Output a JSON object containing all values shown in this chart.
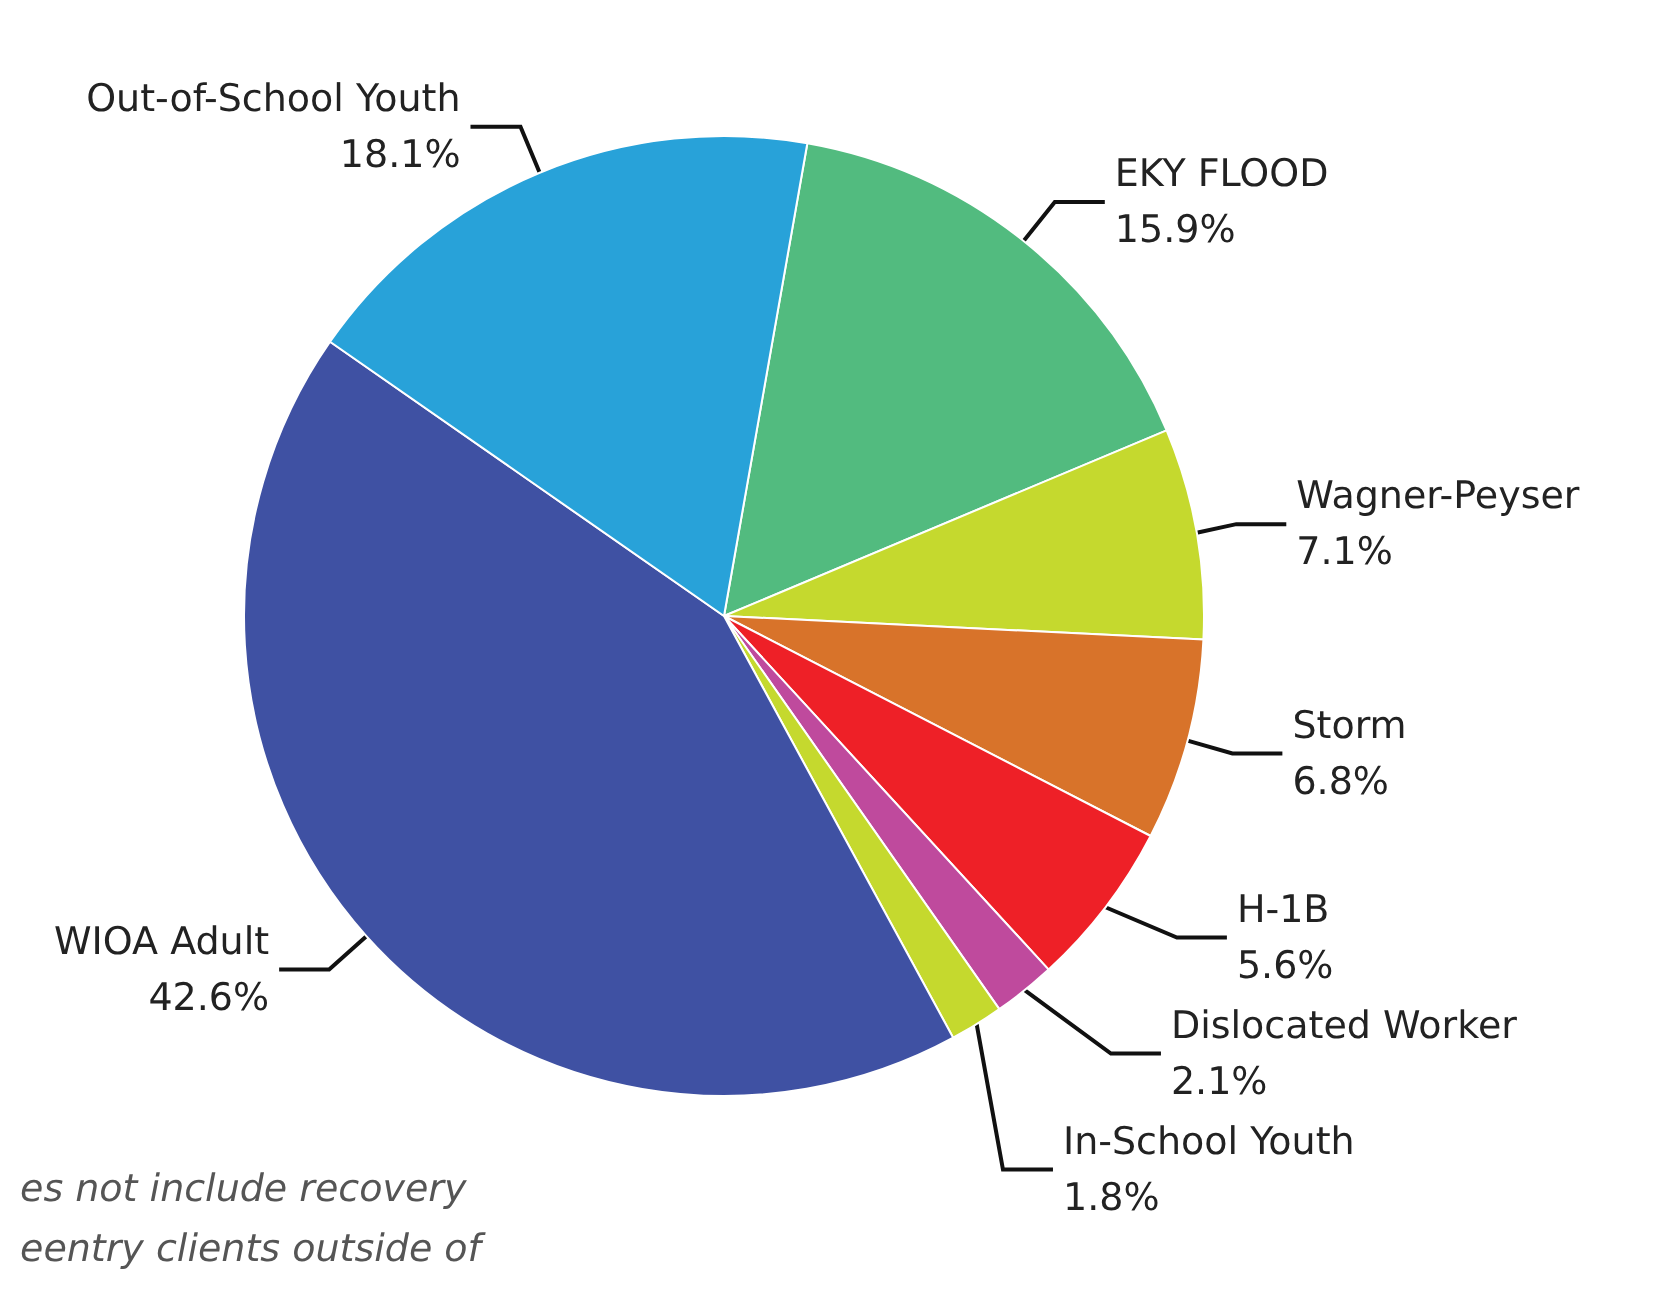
{
  "chart_data": {
    "type": "pie",
    "categories": [
      "EKY FLOOD",
      "Wagner-Peyser",
      "Storm",
      "H-1B",
      "Dislocated Worker",
      "In-School Youth",
      "WIOA Adult",
      "Out-of-School Youth"
    ],
    "values": [
      15.9,
      7.1,
      6.8,
      5.6,
      2.1,
      1.8,
      42.6,
      18.1
    ],
    "value_labels": [
      "15.9%",
      "7.1%",
      "6.8%",
      "5.6%",
      "2.1%",
      "1.8%",
      "42.6%",
      "18.1%"
    ],
    "colors": [
      "#52bb7f",
      "#c5d92e",
      "#d8732a",
      "#ee2027",
      "#bf4a9d",
      "#c5d92e",
      "#3f51a3",
      "#28a2d9"
    ],
    "annotations": [
      "es not include recovery",
      "eentry clients outside of"
    ],
    "legend": false
  }
}
